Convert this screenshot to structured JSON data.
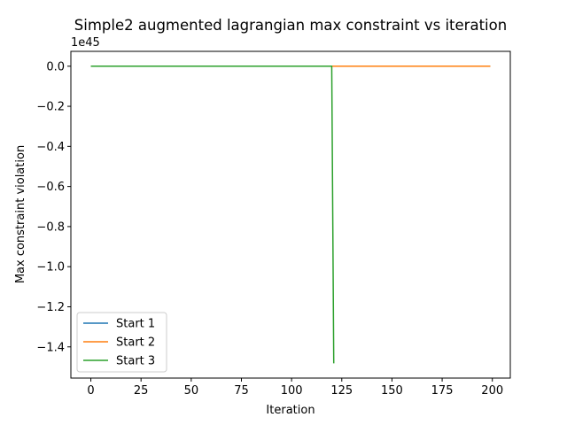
{
  "chart_data": {
    "type": "line",
    "title": "Simple2 augmented lagrangian max constraint vs iteration",
    "xlabel": "Iteration",
    "ylabel": "Max constraint violation",
    "offset_text": "1e45",
    "xlim": [
      -9.95,
      208.95
    ],
    "ylim": [
      -1.5556,
      0.0741
    ],
    "xticks": [
      0,
      25,
      50,
      75,
      100,
      125,
      150,
      175,
      200
    ],
    "xtick_labels": [
      "0",
      "25",
      "50",
      "75",
      "100",
      "125",
      "150",
      "175",
      "200"
    ],
    "yticks": [
      0.0,
      -0.2,
      -0.4,
      -0.6,
      -0.8,
      -1.0,
      -1.2,
      -1.4
    ],
    "ytick_labels": [
      "0.0",
      "−0.2",
      "−0.4",
      "−0.6",
      "−0.8",
      "−1.0",
      "−1.2",
      "−1.4"
    ],
    "grid": false,
    "legend_position": "lower-left",
    "series": [
      {
        "name": "Start 1",
        "color": "#1f77b4",
        "x": [
          0,
          199
        ],
        "y": [
          0,
          0
        ]
      },
      {
        "name": "Start 2",
        "color": "#ff7f0e",
        "x": [
          0,
          199
        ],
        "y": [
          0,
          0
        ]
      },
      {
        "name": "Start 3",
        "color": "#2ca02c",
        "x": [
          0,
          120,
          121
        ],
        "y": [
          0,
          0,
          -1.482
        ]
      }
    ]
  }
}
